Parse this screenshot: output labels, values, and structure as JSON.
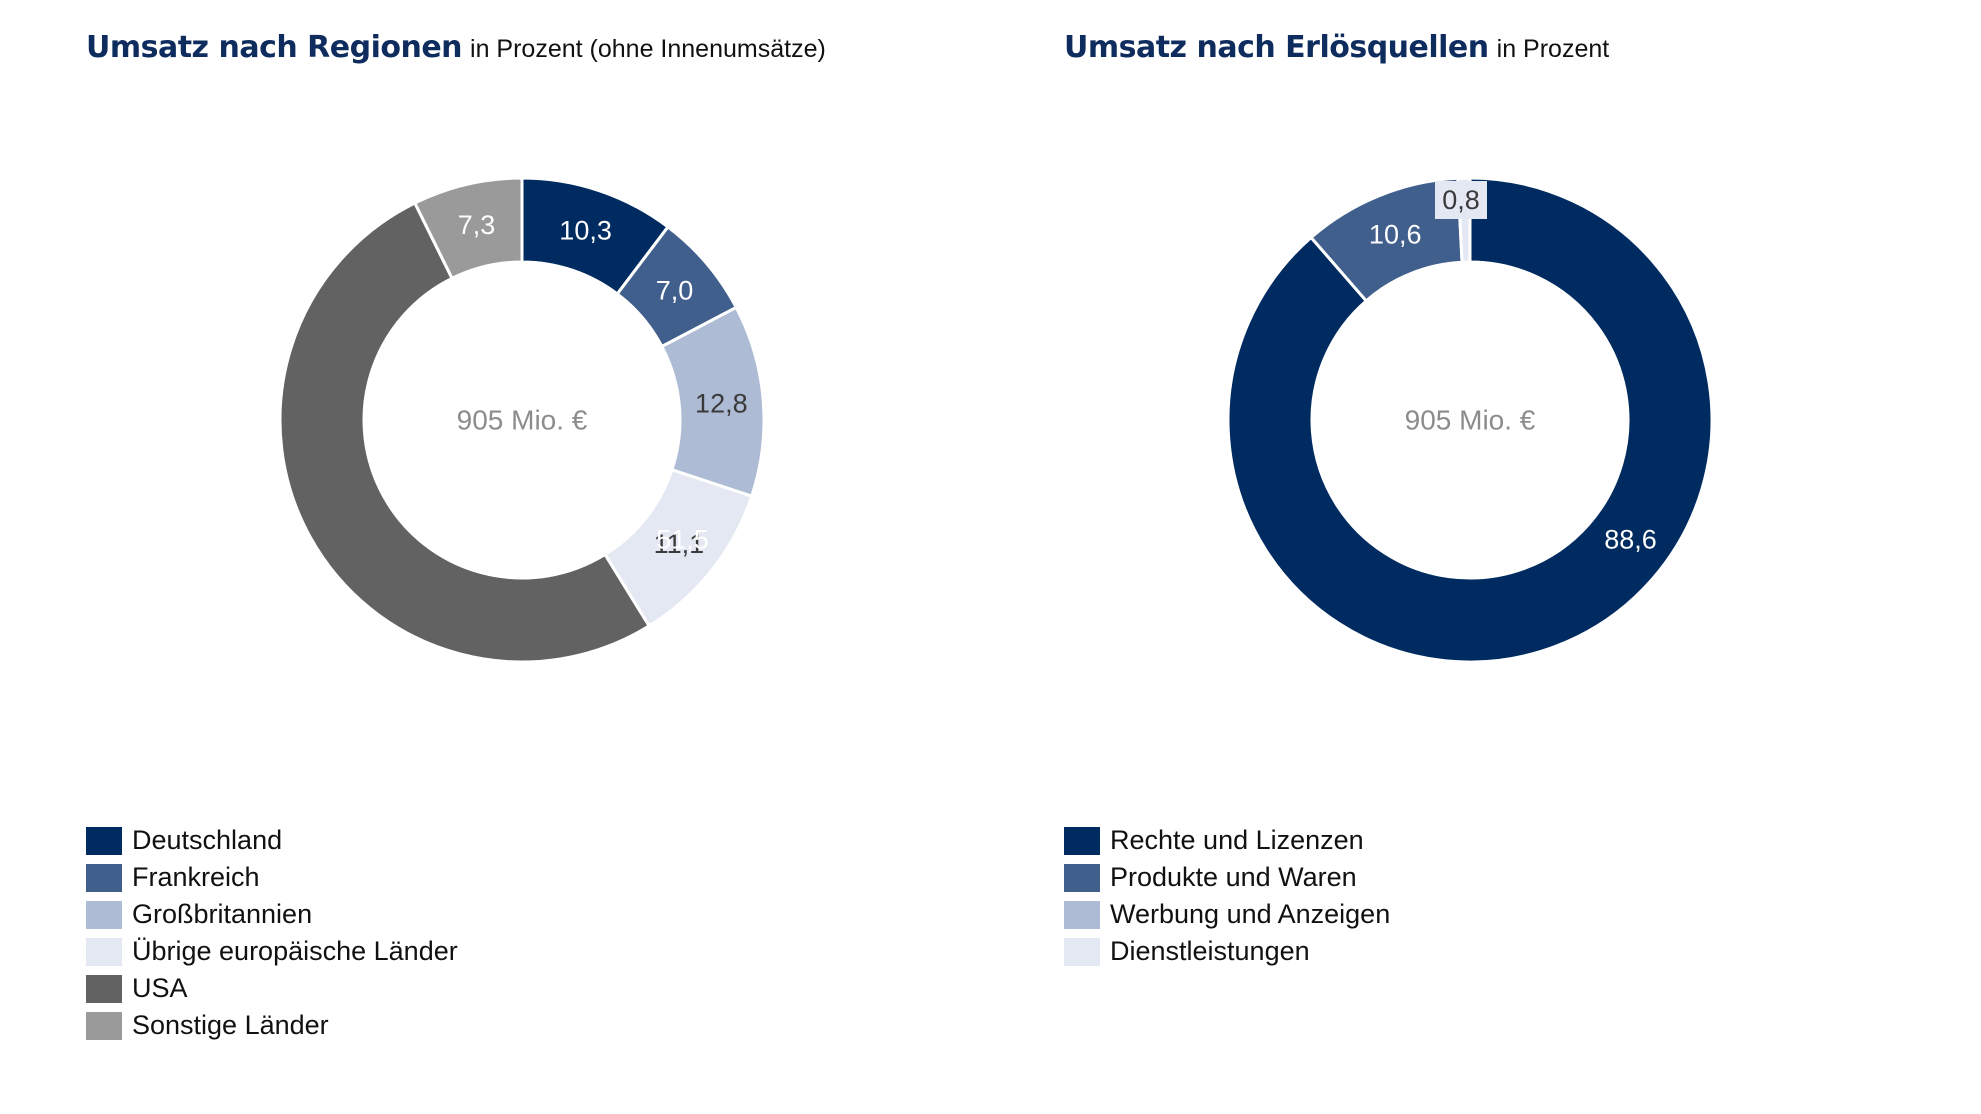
{
  "chart_data": [
    {
      "type": "pie",
      "variant": "donut",
      "title": "Umsatz nach Regionen",
      "subtitle": "in Prozent (ohne Innenumsätze)",
      "center_label": "905 Mio. €",
      "legend_position": "bottom-left",
      "slices": [
        {
          "label": "Deutschland",
          "value": 10.3,
          "display": "10,3",
          "color": "#002b61",
          "label_color": "#ffffff"
        },
        {
          "label": "Frankreich",
          "value": 7.0,
          "display": "7,0",
          "color": "#415f8d",
          "label_color": "#ffffff"
        },
        {
          "label": "Großbritannien",
          "value": 12.8,
          "display": "12,8",
          "color": "#adbbd4",
          "label_color": "#3a3a3a"
        },
        {
          "label": "Übrige europäische Länder",
          "value": 11.1,
          "display": "11,1",
          "color": "#e3e8f2",
          "label_color": "#3a3a3a"
        },
        {
          "label": "USA",
          "value": 51.5,
          "display": "51,5",
          "color": "#626262",
          "label_color": "#ffffff"
        },
        {
          "label": "Sonstige Länder",
          "value": 7.3,
          "display": "7,3",
          "color": "#9a9a9a",
          "label_color": "#ffffff"
        }
      ]
    },
    {
      "type": "pie",
      "variant": "donut",
      "title": "Umsatz nach Erlösquellen",
      "subtitle": "in Prozent",
      "center_label": "905 Mio. €",
      "legend_position": "bottom-left",
      "slices": [
        {
          "label": "Rechte und Lizenzen",
          "value": 88.6,
          "display": "88,6",
          "color": "#002b61",
          "label_color": "#ffffff"
        },
        {
          "label": "Produkte und Waren",
          "value": 10.6,
          "display": "10,6",
          "color": "#415f8d",
          "label_color": "#ffffff"
        },
        {
          "label": "Werbung und Anzeigen",
          "value": 0.0,
          "display": "",
          "color": "#adbbd4",
          "label_color": "#3a3a3a"
        },
        {
          "label": "Dienstleistungen",
          "value": 0.8,
          "display": "0,8",
          "color": "#e3e8f2",
          "label_color": "#3a3a3a"
        }
      ]
    }
  ]
}
